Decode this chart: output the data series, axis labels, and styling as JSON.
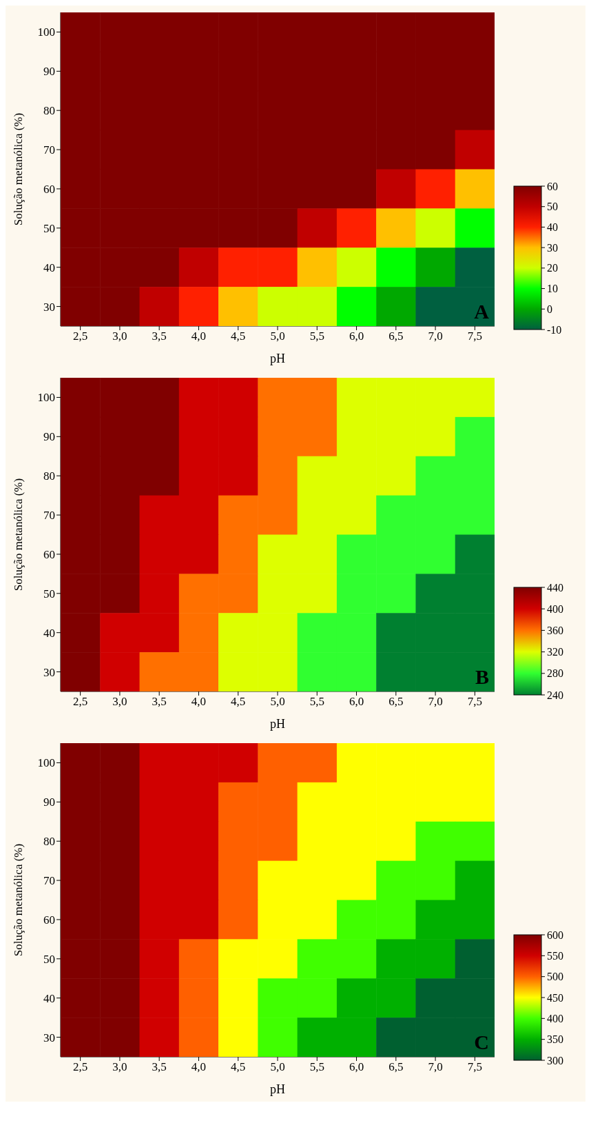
{
  "chart_data": [
    {
      "type": "heatmap",
      "xlabel": "pH",
      "ylabel": "Solução metanólica (%)",
      "annotations": [
        "A"
      ],
      "categories": [
        "2,5",
        "3,0",
        "3,5",
        "4,0",
        "4,5",
        "5,0",
        "5,5",
        "6,0",
        "6,5",
        "7,0",
        "7,5"
      ],
      "y_categories": [
        "100",
        "90",
        "80",
        "70",
        "60",
        "50",
        "40",
        "30"
      ],
      "clim": [
        -10,
        60
      ],
      "cticks": [
        60,
        50,
        40,
        30,
        20,
        10,
        0,
        -10
      ],
      "colors": [
        "#800000",
        "#c00000",
        "#ff2000",
        "#ffc000",
        "#ccff00",
        "#00ff00",
        "#00a800",
        "#006040"
      ],
      "cells": [
        [
          60,
          60,
          60,
          60,
          60,
          60,
          60,
          60,
          60,
          60,
          60
        ],
        [
          60,
          60,
          60,
          60,
          60,
          60,
          60,
          60,
          60,
          60,
          60
        ],
        [
          60,
          60,
          60,
          60,
          60,
          60,
          60,
          60,
          60,
          60,
          60
        ],
        [
          60,
          60,
          60,
          60,
          60,
          60,
          60,
          60,
          60,
          60,
          50
        ],
        [
          60,
          60,
          60,
          60,
          60,
          60,
          60,
          60,
          50,
          40,
          30
        ],
        [
          60,
          60,
          60,
          60,
          60,
          60,
          50,
          40,
          30,
          20,
          10
        ],
        [
          60,
          60,
          60,
          50,
          40,
          40,
          30,
          20,
          10,
          0,
          -10
        ],
        [
          60,
          60,
          50,
          40,
          30,
          20,
          20,
          10,
          0,
          -10,
          -10
        ]
      ]
    },
    {
      "type": "heatmap",
      "xlabel": "pH",
      "ylabel": "Solução metanólica (%)",
      "annotations": [
        "B"
      ],
      "categories": [
        "2,5",
        "3,0",
        "3,5",
        "4,0",
        "4,5",
        "5,0",
        "5,5",
        "6,0",
        "6,5",
        "7,0",
        "7,5"
      ],
      "y_categories": [
        "100",
        "90",
        "80",
        "70",
        "60",
        "50",
        "40",
        "30"
      ],
      "clim": [
        240,
        440
      ],
      "cticks": [
        440,
        400,
        360,
        320,
        280,
        240
      ],
      "colors": [
        "#800000",
        "#d00000",
        "#ff7000",
        "#ddff00",
        "#30ff30",
        "#008030"
      ],
      "cells": [
        [
          440,
          440,
          440,
          400,
          400,
          360,
          360,
          320,
          320,
          320,
          320
        ],
        [
          440,
          440,
          440,
          400,
          400,
          360,
          360,
          320,
          320,
          320,
          280
        ],
        [
          440,
          440,
          440,
          400,
          400,
          360,
          320,
          320,
          320,
          280,
          280
        ],
        [
          440,
          440,
          400,
          400,
          360,
          360,
          320,
          320,
          280,
          280,
          280
        ],
        [
          440,
          440,
          400,
          400,
          360,
          320,
          320,
          280,
          280,
          280,
          240
        ],
        [
          440,
          440,
          400,
          360,
          360,
          320,
          320,
          280,
          280,
          240,
          240
        ],
        [
          440,
          400,
          400,
          360,
          320,
          320,
          280,
          280,
          240,
          240,
          240
        ],
        [
          440,
          400,
          360,
          360,
          320,
          320,
          280,
          280,
          240,
          240,
          240
        ]
      ]
    },
    {
      "type": "heatmap",
      "xlabel": "pH",
      "ylabel": "Solução metanólica (%)",
      "annotations": [
        "C"
      ],
      "categories": [
        "2,5",
        "3,0",
        "3,5",
        "4,0",
        "4,5",
        "5,0",
        "5,5",
        "6,0",
        "6,5",
        "7,0",
        "7,5"
      ],
      "y_categories": [
        "100",
        "90",
        "80",
        "70",
        "60",
        "50",
        "40",
        "30"
      ],
      "clim": [
        300,
        600
      ],
      "cticks": [
        600,
        550,
        500,
        450,
        400,
        350,
        300
      ],
      "colors": [
        "#800000",
        "#d00000",
        "#ff6000",
        "#ffff00",
        "#40ff00",
        "#00b000",
        "#006030"
      ],
      "cells": [
        [
          600,
          600,
          550,
          550,
          550,
          500,
          500,
          450,
          450,
          450,
          450
        ],
        [
          600,
          600,
          550,
          550,
          500,
          500,
          450,
          450,
          450,
          450,
          450
        ],
        [
          600,
          600,
          550,
          550,
          500,
          500,
          450,
          450,
          450,
          400,
          400
        ],
        [
          600,
          600,
          550,
          550,
          500,
          450,
          450,
          450,
          400,
          400,
          350
        ],
        [
          600,
          600,
          550,
          550,
          500,
          450,
          450,
          400,
          400,
          350,
          350
        ],
        [
          600,
          600,
          550,
          500,
          450,
          450,
          400,
          400,
          350,
          350,
          300
        ],
        [
          600,
          600,
          550,
          500,
          450,
          400,
          400,
          350,
          350,
          300,
          300
        ],
        [
          600,
          600,
          550,
          500,
          450,
          400,
          350,
          350,
          300,
          300,
          300
        ]
      ]
    }
  ]
}
